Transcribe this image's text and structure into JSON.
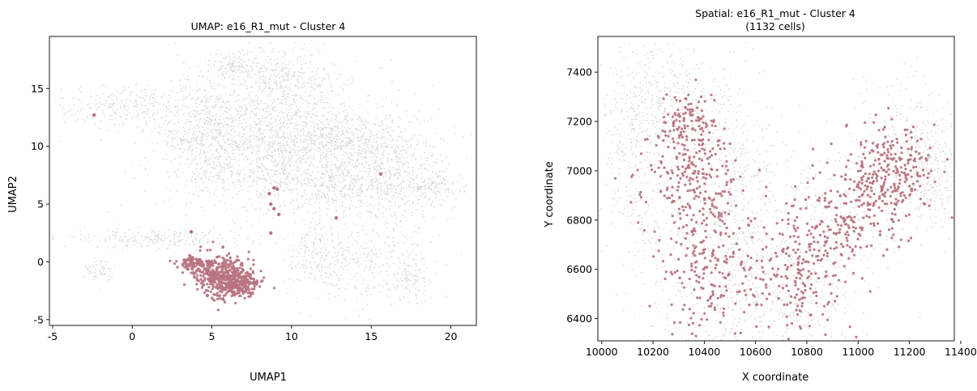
{
  "colors": {
    "background_points": "#d3d3d3",
    "highlight_points": "#b87480"
  },
  "chart_data": [
    {
      "type": "scatter",
      "title": "UMAP: e16_R1_mut - Cluster 4",
      "xlabel": "UMAP1",
      "ylabel": "UMAP2",
      "xlim": [
        -5.2,
        21.6
      ],
      "ylim": [
        -5.5,
        19.5
      ],
      "xticks": [
        -5,
        0,
        5,
        10,
        15,
        20
      ],
      "yticks": [
        -5,
        0,
        5,
        10,
        15
      ],
      "grid": false,
      "series": [
        {
          "role": "background",
          "regions": [
            {
              "x": 8.8,
              "y": 10.5,
              "sx": 3.2,
              "sy": 3.0,
              "w": 0.3
            },
            {
              "x": 13.0,
              "y": 10.5,
              "sx": 2.5,
              "sy": 1.5,
              "w": 0.12
            },
            {
              "x": 16.5,
              "y": 7.0,
              "sx": 1.8,
              "sy": 2.0,
              "w": 0.08
            },
            {
              "x": 12.5,
              "y": 6.5,
              "sx": 2.5,
              "sy": 1.2,
              "w": 0.08
            },
            {
              "x": 9.5,
              "y": 16.0,
              "sx": 1.5,
              "sy": 1.2,
              "w": 0.05
            },
            {
              "x": -0.5,
              "y": 13.5,
              "sx": 2.0,
              "sy": 1.0,
              "w": 0.05
            },
            {
              "x": 4.5,
              "y": 13.0,
              "sx": 1.2,
              "sy": 1.5,
              "w": 0.04
            },
            {
              "x": 4.0,
              "y": 10.5,
              "sx": 1.5,
              "sy": 0.5,
              "w": 0.03
            },
            {
              "x": 1.5,
              "y": 2.0,
              "sx": 2.8,
              "sy": 0.4,
              "w": 0.05
            },
            {
              "x": 14.5,
              "y": 0.0,
              "sx": 2.0,
              "sy": 2.0,
              "w": 0.06
            },
            {
              "x": 11.5,
              "y": 0.5,
              "sx": 1.0,
              "sy": 1.5,
              "w": 0.03
            },
            {
              "x": 19.0,
              "y": 6.5,
              "sx": 1.0,
              "sy": 0.5,
              "w": 0.02
            },
            {
              "x": 6.5,
              "y": 17.0,
              "sx": 0.7,
              "sy": 0.5,
              "w": 0.02
            },
            {
              "x": 17.5,
              "y": -1.0,
              "sx": 0.6,
              "sy": 1.5,
              "w": 0.02
            },
            {
              "x": -2.0,
              "y": -1.0,
              "sx": 0.5,
              "sy": 0.7,
              "w": 0.01
            },
            {
              "x": 5.0,
              "y": 8.0,
              "sx": 1.0,
              "sy": 0.8,
              "w": 0.02
            }
          ]
        },
        {
          "role": "highlight",
          "regions": [
            {
              "x": 5.6,
              "y": -1.2,
              "sx": 0.9,
              "sy": 0.9,
              "w": 0.55
            },
            {
              "x": 6.6,
              "y": -2.0,
              "sx": 0.7,
              "sy": 0.5,
              "w": 0.3
            },
            {
              "x": 4.0,
              "y": -0.1,
              "sx": 0.6,
              "sy": 0.3,
              "w": 0.15
            }
          ],
          "outliers": [
            [
              -2.4,
              12.7
            ],
            [
              3.7,
              2.6
            ],
            [
              8.9,
              6.4
            ],
            [
              9.1,
              6.3
            ],
            [
              8.6,
              5.9
            ],
            [
              8.7,
              5.0
            ],
            [
              8.9,
              4.6
            ],
            [
              9.2,
              4.1
            ],
            [
              8.7,
              2.5
            ],
            [
              12.8,
              3.8
            ],
            [
              15.6,
              7.6
            ]
          ]
        }
      ]
    },
    {
      "type": "scatter",
      "title": "Spatial: e16_R1_mut - Cluster 4",
      "subtitle": "(1132 cells)",
      "xlabel": "X coordinate",
      "ylabel": "Y coordinate",
      "xlim": [
        9985,
        11375
      ],
      "ylim": [
        6310,
        7545
      ],
      "xticks": [
        10000,
        10200,
        10400,
        10600,
        10800,
        11000,
        11200,
        11400
      ],
      "yticks": [
        6400,
        6600,
        6800,
        7000,
        7200,
        7400
      ],
      "grid": false,
      "series": [
        {
          "role": "background",
          "regions": [
            {
              "x": 10250,
              "y": 7300,
              "sx": 120,
              "sy": 120,
              "w": 0.15
            },
            {
              "x": 10470,
              "y": 7050,
              "sx": 110,
              "sy": 150,
              "w": 0.1
            },
            {
              "x": 10120,
              "y": 7050,
              "sx": 60,
              "sy": 200,
              "w": 0.08
            },
            {
              "x": 10560,
              "y": 6600,
              "sx": 80,
              "sy": 200,
              "w": 0.1
            },
            {
              "x": 10400,
              "y": 6700,
              "sx": 160,
              "sy": 280,
              "w": 0.16
            },
            {
              "x": 10750,
              "y": 6500,
              "sx": 110,
              "sy": 100,
              "w": 0.1
            },
            {
              "x": 10980,
              "y": 6850,
              "sx": 160,
              "sy": 150,
              "w": 0.11
            },
            {
              "x": 11200,
              "y": 7100,
              "sx": 100,
              "sy": 140,
              "w": 0.12
            },
            {
              "x": 11300,
              "y": 6950,
              "sx": 50,
              "sy": 120,
              "w": 0.08
            }
          ]
        },
        {
          "role": "highlight",
          "count": 1132,
          "regions": [
            {
              "x": 10355,
              "y": 7200,
              "sx": 60,
              "sy": 65,
              "w": 0.09
            },
            {
              "x": 10340,
              "y": 6960,
              "sx": 110,
              "sy": 110,
              "w": 0.17
            },
            {
              "x": 10420,
              "y": 6600,
              "sx": 95,
              "sy": 180,
              "w": 0.2
            },
            {
              "x": 10760,
              "y": 6560,
              "sx": 90,
              "sy": 110,
              "w": 0.14
            },
            {
              "x": 10930,
              "y": 6790,
              "sx": 110,
              "sy": 100,
              "w": 0.18
            },
            {
              "x": 11120,
              "y": 7000,
              "sx": 90,
              "sy": 100,
              "w": 0.22
            }
          ]
        }
      ]
    }
  ]
}
